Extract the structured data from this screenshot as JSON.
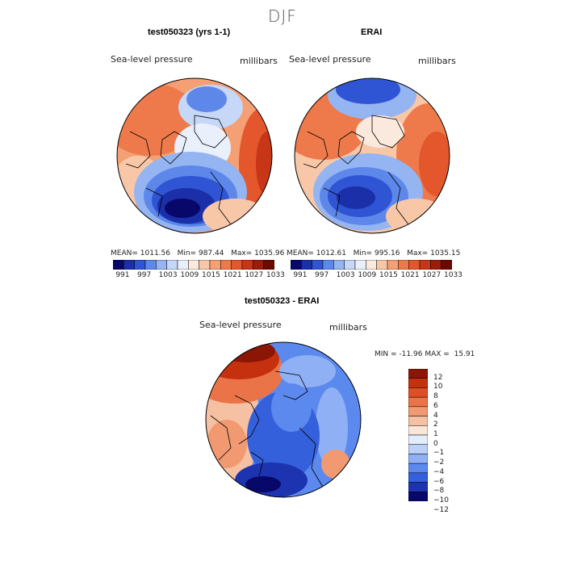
{
  "figure": {
    "title": "DJF"
  },
  "chart_data": [
    {
      "type": "heatmap",
      "title": "test050323 (yrs 1-1)",
      "variable_label": "Sea-level pressure",
      "units_label": "millibars",
      "stats": {
        "mean_label": "MEAN=",
        "mean": "1011.56",
        "min_label": "Min=",
        "min": "987.44",
        "max_label": "Max=",
        "max": "1035.96"
      },
      "colorbar_levels": [
        "991",
        "997",
        "1003",
        "1009",
        "1015",
        "1021",
        "1027",
        "1033"
      ]
    },
    {
      "type": "heatmap",
      "title": "ERAI",
      "variable_label": "Sea-level pressure",
      "units_label": "millibars",
      "stats": {
        "mean_label": "MEAN=",
        "mean": "1012.61",
        "min_label": "Min=",
        "min": "995.16",
        "max_label": "Max=",
        "max": "1035.15"
      },
      "colorbar_levels": [
        "991",
        "997",
        "1003",
        "1009",
        "1015",
        "1021",
        "1027",
        "1033"
      ]
    },
    {
      "type": "heatmap",
      "title": "test050323 - ERAI",
      "variable_label": "Sea-level pressure",
      "units_label": "millibars",
      "stats": {
        "min_label": "MIN =",
        "min": "-11.96",
        "max_label": "MAX =",
        "max": "15.91"
      },
      "colorbar_levels": [
        "12",
        "10",
        "8",
        "6",
        "4",
        "2",
        "1",
        "0",
        "−1",
        "−2",
        "−4",
        "−6",
        "−8",
        "−10",
        "−12"
      ]
    }
  ],
  "colors": {
    "abs_scale": [
      "#08086b",
      "#1a2fa8",
      "#2f55d4",
      "#5d88ea",
      "#94b4f2",
      "#c6d7f7",
      "#eaf0fb",
      "#fbe9de",
      "#f8c7a8",
      "#f4a074",
      "#ee7a4c",
      "#e4562c",
      "#c83618",
      "#9c1c0a",
      "#6b0a00"
    ],
    "diff_scale": [
      "#08086b",
      "#1d34b0",
      "#3560db",
      "#5b89ee",
      "#8fb0f4",
      "#bcd1f8",
      "#e4edfb",
      "#fbe6da",
      "#f6c1a3",
      "#f19a72",
      "#ea7447",
      "#df4f25",
      "#c5300f",
      "#8b1605"
    ]
  }
}
